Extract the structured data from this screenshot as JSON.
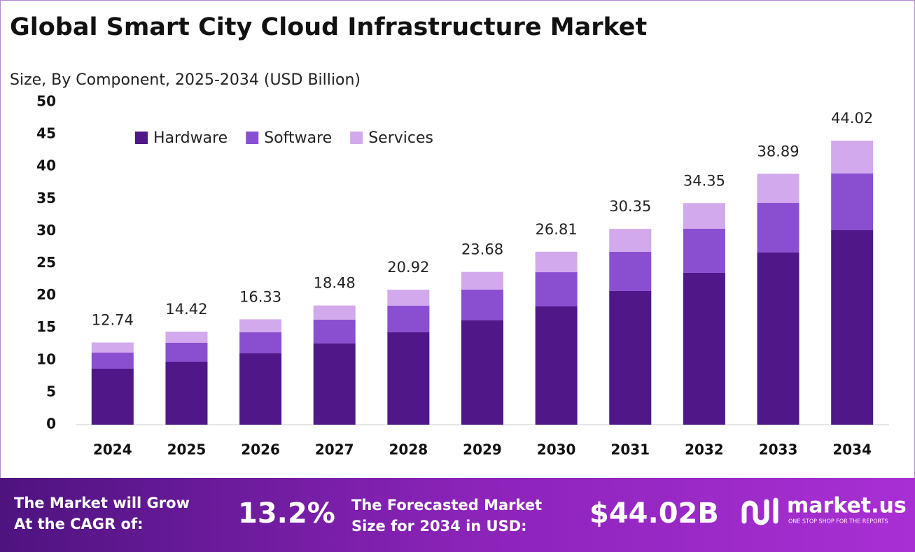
{
  "chart_data": {
    "type": "stacked-bar",
    "title": "Global Smart City Cloud Infrastructure Market",
    "subtitle": "Size, By Component, 2025-2034 (USD Billion)",
    "categories": [
      "2024",
      "2025",
      "2026",
      "2027",
      "2028",
      "2029",
      "2030",
      "2031",
      "2032",
      "2033",
      "2034"
    ],
    "series": [
      {
        "name": "Hardware",
        "color": "#4f1787",
        "values": [
          8.68,
          9.76,
          11.06,
          12.58,
          14.32,
          16.16,
          18.33,
          20.72,
          23.54,
          26.68,
          30.15
        ]
      },
      {
        "name": "Software",
        "color": "#8a4fd0",
        "values": [
          2.49,
          2.93,
          3.26,
          3.69,
          4.12,
          4.77,
          5.31,
          6.07,
          6.83,
          7.7,
          8.79
        ]
      },
      {
        "name": "Services",
        "color": "#d2a9ed",
        "values": [
          1.57,
          1.73,
          2.01,
          2.21,
          2.48,
          2.75,
          3.17,
          3.56,
          3.98,
          4.51,
          5.08
        ]
      }
    ],
    "totals": [
      12.74,
      14.42,
      16.33,
      18.48,
      20.92,
      23.68,
      26.81,
      30.35,
      34.35,
      38.89,
      44.02
    ],
    "ylim": [
      0,
      50
    ],
    "yticks": [
      0,
      5,
      10,
      15,
      20,
      25,
      30,
      35,
      40,
      45,
      50
    ],
    "grid": false,
    "legend": "top-left"
  },
  "footer": {
    "cagr_text": [
      "The Market will Grow",
      "At the CAGR of:"
    ],
    "cagr_value": "13.2%",
    "forecast_text": [
      "The Forecasted Market",
      "Size for 2034 in USD:"
    ],
    "forecast_value": "$44.02B",
    "brand": "market.us",
    "tagline": "ONE STOP SHOP FOR THE REPORTS"
  }
}
